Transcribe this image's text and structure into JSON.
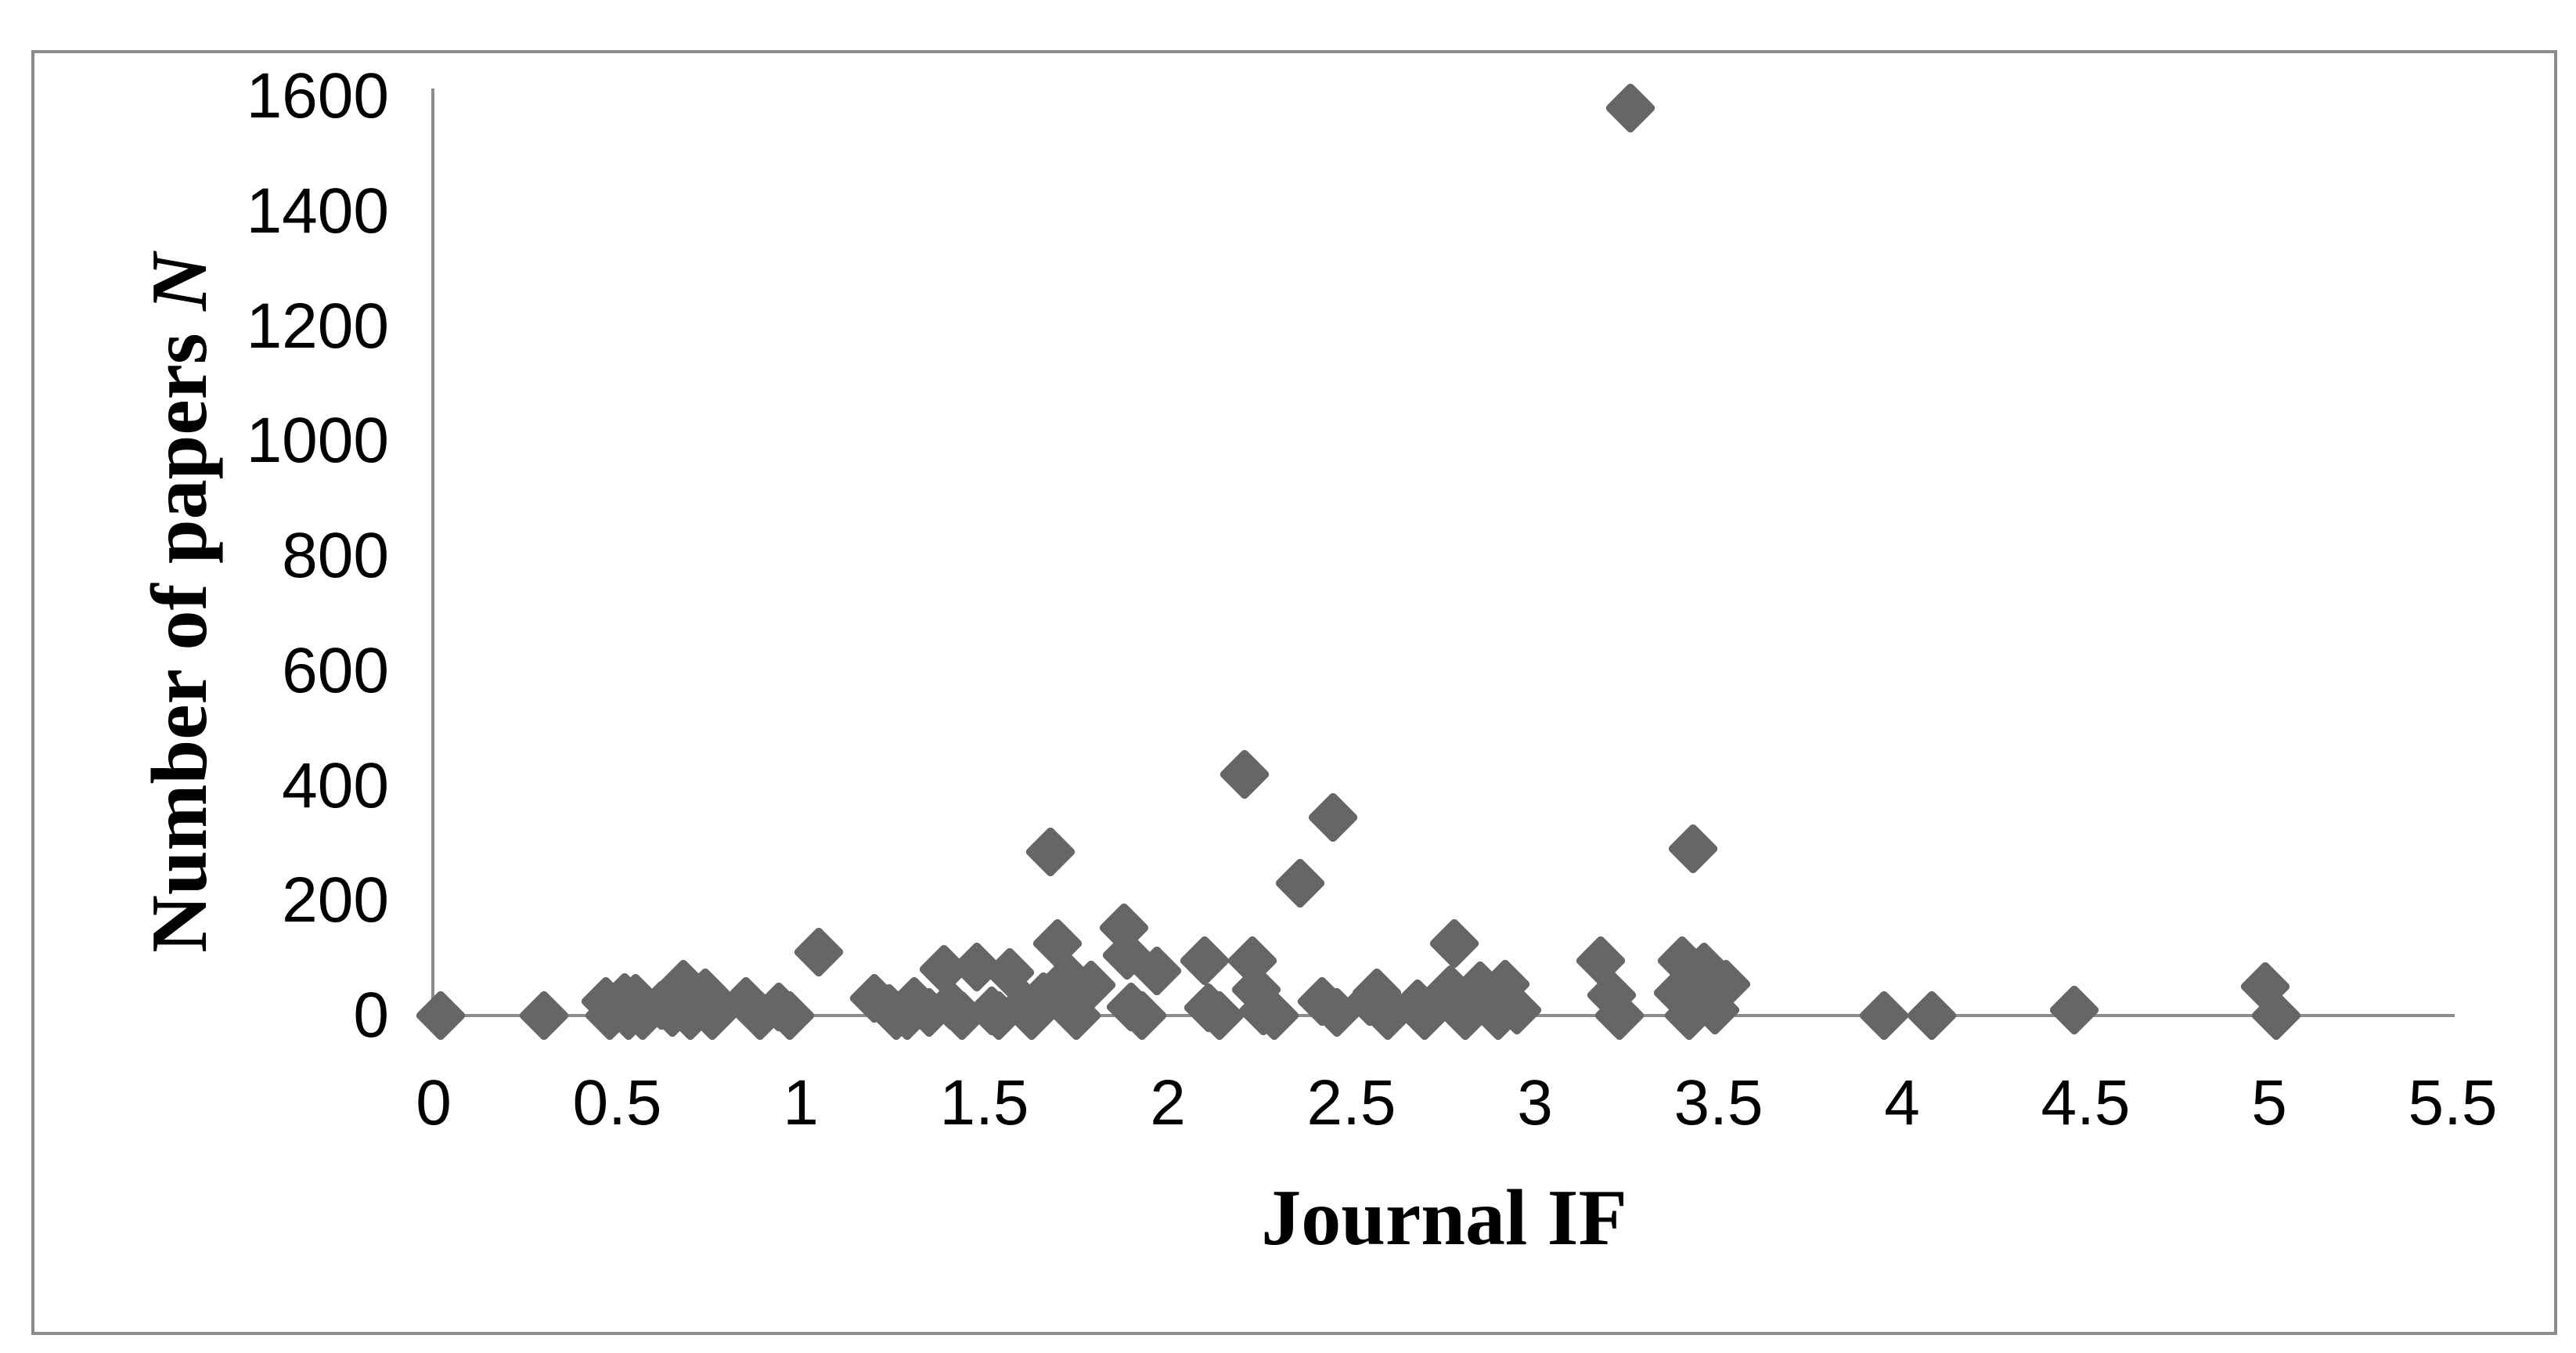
{
  "figure": {
    "background_color": "#ffffff",
    "border_color": "#8c8c8c",
    "axis_color": "#8c8c8c",
    "text_color": "#000000"
  },
  "chart_data": {
    "type": "scatter",
    "title": "",
    "xlabel": "Journal IF",
    "ylabel": "Number of papers N",
    "ylabel_text": "Number of papers",
    "ylabel_italic_suffix": "N",
    "xlim": [
      0,
      5.5
    ],
    "ylim": [
      0,
      1600
    ],
    "x_ticks": [
      "0",
      "0.5",
      "1",
      "1.5",
      "2",
      "2.5",
      "3",
      "3.5",
      "4",
      "4.5",
      "5",
      "5.5"
    ],
    "y_ticks": [
      "0",
      "200",
      "400",
      "600",
      "800",
      "1000",
      "1200",
      "1400",
      "1600"
    ],
    "grid": "off",
    "legend": "none",
    "marker": {
      "shape": "diamond",
      "color": "#666666"
    },
    "points": [
      [
        0.02,
        0
      ],
      [
        0.3,
        0
      ],
      [
        0.47,
        25
      ],
      [
        0.48,
        0
      ],
      [
        0.52,
        32
      ],
      [
        0.53,
        0
      ],
      [
        0.55,
        30
      ],
      [
        0.57,
        0
      ],
      [
        0.62,
        18
      ],
      [
        0.65,
        5
      ],
      [
        0.68,
        55
      ],
      [
        0.7,
        0
      ],
      [
        0.74,
        40
      ],
      [
        0.76,
        0
      ],
      [
        0.85,
        25
      ],
      [
        0.89,
        0
      ],
      [
        0.94,
        15
      ],
      [
        0.97,
        0
      ],
      [
        1.05,
        110
      ],
      [
        1.2,
        30
      ],
      [
        1.24,
        12
      ],
      [
        1.26,
        0
      ],
      [
        1.29,
        0
      ],
      [
        1.31,
        25
      ],
      [
        1.35,
        5
      ],
      [
        1.39,
        80
      ],
      [
        1.41,
        18
      ],
      [
        1.44,
        0
      ],
      [
        1.48,
        85
      ],
      [
        1.52,
        8
      ],
      [
        1.54,
        0
      ],
      [
        1.57,
        75
      ],
      [
        1.61,
        18
      ],
      [
        1.63,
        0
      ],
      [
        1.66,
        33
      ],
      [
        1.68,
        285
      ],
      [
        1.7,
        125
      ],
      [
        1.72,
        55
      ],
      [
        1.73,
        65
      ],
      [
        1.75,
        0
      ],
      [
        1.79,
        53
      ],
      [
        1.88,
        152
      ],
      [
        1.89,
        105
      ],
      [
        1.9,
        15
      ],
      [
        1.93,
        0
      ],
      [
        1.97,
        78
      ],
      [
        2.1,
        95
      ],
      [
        2.11,
        14
      ],
      [
        2.14,
        0
      ],
      [
        2.21,
        420
      ],
      [
        2.23,
        95
      ],
      [
        2.24,
        45
      ],
      [
        2.26,
        8
      ],
      [
        2.29,
        0
      ],
      [
        2.36,
        230
      ],
      [
        2.42,
        25
      ],
      [
        2.45,
        345
      ],
      [
        2.46,
        5
      ],
      [
        2.55,
        25
      ],
      [
        2.57,
        40
      ],
      [
        2.6,
        0
      ],
      [
        2.68,
        20
      ],
      [
        2.7,
        0
      ],
      [
        2.77,
        45
      ],
      [
        2.78,
        125
      ],
      [
        2.81,
        0
      ],
      [
        2.85,
        52
      ],
      [
        2.88,
        30
      ],
      [
        2.9,
        0
      ],
      [
        2.92,
        55
      ],
      [
        2.95,
        10
      ],
      [
        3.18,
        95
      ],
      [
        3.21,
        35
      ],
      [
        3.23,
        0
      ],
      [
        3.26,
        1580
      ],
      [
        3.39,
        40
      ],
      [
        3.4,
        95
      ],
      [
        3.42,
        0
      ],
      [
        3.43,
        290
      ],
      [
        3.46,
        85
      ],
      [
        3.47,
        25
      ],
      [
        3.49,
        10
      ],
      [
        3.52,
        55
      ],
      [
        3.95,
        0
      ],
      [
        4.08,
        0
      ],
      [
        4.47,
        10
      ],
      [
        4.99,
        50
      ],
      [
        5.02,
        0
      ]
    ]
  }
}
